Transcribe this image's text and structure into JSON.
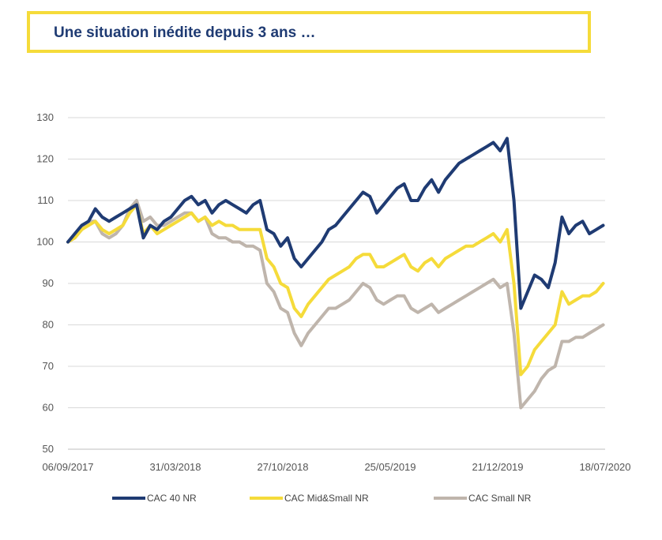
{
  "header": {
    "title": "Une situation inédite depuis 3 ans …"
  },
  "chart_data": {
    "type": "line",
    "title": "",
    "xlabel": "",
    "ylabel": "",
    "ylim": [
      50,
      130
    ],
    "y_ticks": [
      50,
      60,
      70,
      80,
      90,
      100,
      110,
      120,
      130
    ],
    "x_range": [
      "2017-09-06",
      "2020-09-06"
    ],
    "x_ticks": [
      "06/09/2017",
      "31/03/2018",
      "27/10/2018",
      "25/05/2019",
      "21/12/2019",
      "18/07/2020"
    ],
    "grid": true,
    "legend_position": "bottom",
    "series": [
      {
        "name": "CAC 40 NR",
        "color": "#1F3B73",
        "points": [
          [
            "2017-09-06",
            100
          ],
          [
            "2017-09-20",
            102
          ],
          [
            "2017-10-04",
            104
          ],
          [
            "2017-10-18",
            105
          ],
          [
            "2017-11-01",
            108
          ],
          [
            "2017-11-15",
            106
          ],
          [
            "2017-11-29",
            105
          ],
          [
            "2017-12-13",
            106
          ],
          [
            "2017-12-27",
            107
          ],
          [
            "2018-01-10",
            108
          ],
          [
            "2018-01-24",
            109
          ],
          [
            "2018-02-07",
            101
          ],
          [
            "2018-02-21",
            104
          ],
          [
            "2018-03-07",
            103
          ],
          [
            "2018-03-21",
            105
          ],
          [
            "2018-04-04",
            106
          ],
          [
            "2018-04-18",
            108
          ],
          [
            "2018-05-02",
            110
          ],
          [
            "2018-05-16",
            111
          ],
          [
            "2018-05-30",
            109
          ],
          [
            "2018-06-13",
            110
          ],
          [
            "2018-06-27",
            107
          ],
          [
            "2018-07-11",
            109
          ],
          [
            "2018-07-25",
            110
          ],
          [
            "2018-08-08",
            109
          ],
          [
            "2018-08-22",
            108
          ],
          [
            "2018-09-05",
            107
          ],
          [
            "2018-09-19",
            109
          ],
          [
            "2018-10-03",
            110
          ],
          [
            "2018-10-17",
            103
          ],
          [
            "2018-10-31",
            102
          ],
          [
            "2018-11-14",
            99
          ],
          [
            "2018-11-28",
            101
          ],
          [
            "2018-12-12",
            96
          ],
          [
            "2018-12-26",
            94
          ],
          [
            "2019-01-09",
            96
          ],
          [
            "2019-01-23",
            98
          ],
          [
            "2019-02-06",
            100
          ],
          [
            "2019-02-20",
            103
          ],
          [
            "2019-03-06",
            104
          ],
          [
            "2019-03-20",
            106
          ],
          [
            "2019-04-03",
            108
          ],
          [
            "2019-04-17",
            110
          ],
          [
            "2019-05-01",
            112
          ],
          [
            "2019-05-15",
            111
          ],
          [
            "2019-05-29",
            107
          ],
          [
            "2019-06-12",
            109
          ],
          [
            "2019-06-26",
            111
          ],
          [
            "2019-07-10",
            113
          ],
          [
            "2019-07-24",
            114
          ],
          [
            "2019-08-07",
            110
          ],
          [
            "2019-08-21",
            110
          ],
          [
            "2019-09-04",
            113
          ],
          [
            "2019-09-18",
            115
          ],
          [
            "2019-10-02",
            112
          ],
          [
            "2019-10-16",
            115
          ],
          [
            "2019-10-30",
            117
          ],
          [
            "2019-11-13",
            119
          ],
          [
            "2019-11-27",
            120
          ],
          [
            "2019-12-11",
            121
          ],
          [
            "2019-12-25",
            122
          ],
          [
            "2020-01-08",
            123
          ],
          [
            "2020-01-22",
            124
          ],
          [
            "2020-02-05",
            122
          ],
          [
            "2020-02-19",
            125
          ],
          [
            "2020-03-04",
            110
          ],
          [
            "2020-03-18",
            84
          ],
          [
            "2020-04-01",
            88
          ],
          [
            "2020-04-15",
            92
          ],
          [
            "2020-04-29",
            91
          ],
          [
            "2020-05-13",
            89
          ],
          [
            "2020-05-27",
            95
          ],
          [
            "2020-06-10",
            106
          ],
          [
            "2020-06-24",
            102
          ],
          [
            "2020-07-08",
            104
          ],
          [
            "2020-07-22",
            105
          ],
          [
            "2020-08-05",
            102
          ],
          [
            "2020-08-19",
            103
          ],
          [
            "2020-09-02",
            104
          ]
        ]
      },
      {
        "name": "CAC Mid&Small NR",
        "color": "#F5DB3A",
        "points": [
          [
            "2017-09-06",
            100
          ],
          [
            "2017-09-20",
            101
          ],
          [
            "2017-10-04",
            103
          ],
          [
            "2017-10-18",
            104
          ],
          [
            "2017-11-01",
            105
          ],
          [
            "2017-11-15",
            103
          ],
          [
            "2017-11-29",
            102
          ],
          [
            "2017-12-13",
            103
          ],
          [
            "2017-12-27",
            104
          ],
          [
            "2018-01-10",
            107
          ],
          [
            "2018-01-24",
            109
          ],
          [
            "2018-02-07",
            102
          ],
          [
            "2018-02-21",
            104
          ],
          [
            "2018-03-07",
            102
          ],
          [
            "2018-03-21",
            103
          ],
          [
            "2018-04-04",
            104
          ],
          [
            "2018-04-18",
            105
          ],
          [
            "2018-05-02",
            106
          ],
          [
            "2018-05-16",
            107
          ],
          [
            "2018-05-30",
            105
          ],
          [
            "2018-06-13",
            106
          ],
          [
            "2018-06-27",
            104
          ],
          [
            "2018-07-11",
            105
          ],
          [
            "2018-07-25",
            104
          ],
          [
            "2018-08-08",
            104
          ],
          [
            "2018-08-22",
            103
          ],
          [
            "2018-09-05",
            103
          ],
          [
            "2018-09-19",
            103
          ],
          [
            "2018-10-03",
            103
          ],
          [
            "2018-10-17",
            96
          ],
          [
            "2018-10-31",
            94
          ],
          [
            "2018-11-14",
            90
          ],
          [
            "2018-11-28",
            89
          ],
          [
            "2018-12-12",
            84
          ],
          [
            "2018-12-26",
            82
          ],
          [
            "2019-01-09",
            85
          ],
          [
            "2019-01-23",
            87
          ],
          [
            "2019-02-06",
            89
          ],
          [
            "2019-02-20",
            91
          ],
          [
            "2019-03-06",
            92
          ],
          [
            "2019-03-20",
            93
          ],
          [
            "2019-04-03",
            94
          ],
          [
            "2019-04-17",
            96
          ],
          [
            "2019-05-01",
            97
          ],
          [
            "2019-05-15",
            97
          ],
          [
            "2019-05-29",
            94
          ],
          [
            "2019-06-12",
            94
          ],
          [
            "2019-06-26",
            95
          ],
          [
            "2019-07-10",
            96
          ],
          [
            "2019-07-24",
            97
          ],
          [
            "2019-08-07",
            94
          ],
          [
            "2019-08-21",
            93
          ],
          [
            "2019-09-04",
            95
          ],
          [
            "2019-09-18",
            96
          ],
          [
            "2019-10-02",
            94
          ],
          [
            "2019-10-16",
            96
          ],
          [
            "2019-10-30",
            97
          ],
          [
            "2019-11-13",
            98
          ],
          [
            "2019-11-27",
            99
          ],
          [
            "2019-12-11",
            99
          ],
          [
            "2019-12-25",
            100
          ],
          [
            "2020-01-08",
            101
          ],
          [
            "2020-01-22",
            102
          ],
          [
            "2020-02-05",
            100
          ],
          [
            "2020-02-19",
            103
          ],
          [
            "2020-03-04",
            90
          ],
          [
            "2020-03-18",
            68
          ],
          [
            "2020-04-01",
            70
          ],
          [
            "2020-04-15",
            74
          ],
          [
            "2020-04-29",
            76
          ],
          [
            "2020-05-13",
            78
          ],
          [
            "2020-05-27",
            80
          ],
          [
            "2020-06-10",
            88
          ],
          [
            "2020-06-24",
            85
          ],
          [
            "2020-07-08",
            86
          ],
          [
            "2020-07-22",
            87
          ],
          [
            "2020-08-05",
            87
          ],
          [
            "2020-08-19",
            88
          ],
          [
            "2020-09-02",
            90
          ]
        ]
      },
      {
        "name": "CAC Small NR",
        "color": "#BFB5AC",
        "points": [
          [
            "2017-09-06",
            100
          ],
          [
            "2017-09-20",
            101
          ],
          [
            "2017-10-04",
            103
          ],
          [
            "2017-10-18",
            105
          ],
          [
            "2017-11-01",
            105
          ],
          [
            "2017-11-15",
            102
          ],
          [
            "2017-11-29",
            101
          ],
          [
            "2017-12-13",
            102
          ],
          [
            "2017-12-27",
            104
          ],
          [
            "2018-01-10",
            108
          ],
          [
            "2018-01-24",
            110
          ],
          [
            "2018-02-07",
            105
          ],
          [
            "2018-02-21",
            106
          ],
          [
            "2018-03-07",
            104
          ],
          [
            "2018-03-21",
            104
          ],
          [
            "2018-04-04",
            105
          ],
          [
            "2018-04-18",
            106
          ],
          [
            "2018-05-02",
            107
          ],
          [
            "2018-05-16",
            107
          ],
          [
            "2018-05-30",
            105
          ],
          [
            "2018-06-13",
            106
          ],
          [
            "2018-06-27",
            102
          ],
          [
            "2018-07-11",
            101
          ],
          [
            "2018-07-25",
            101
          ],
          [
            "2018-08-08",
            100
          ],
          [
            "2018-08-22",
            100
          ],
          [
            "2018-09-05",
            99
          ],
          [
            "2018-09-19",
            99
          ],
          [
            "2018-10-03",
            98
          ],
          [
            "2018-10-17",
            90
          ],
          [
            "2018-10-31",
            88
          ],
          [
            "2018-11-14",
            84
          ],
          [
            "2018-11-28",
            83
          ],
          [
            "2018-12-12",
            78
          ],
          [
            "2018-12-26",
            75
          ],
          [
            "2019-01-09",
            78
          ],
          [
            "2019-01-23",
            80
          ],
          [
            "2019-02-06",
            82
          ],
          [
            "2019-02-20",
            84
          ],
          [
            "2019-03-06",
            84
          ],
          [
            "2019-03-20",
            85
          ],
          [
            "2019-04-03",
            86
          ],
          [
            "2019-04-17",
            88
          ],
          [
            "2019-05-01",
            90
          ],
          [
            "2019-05-15",
            89
          ],
          [
            "2019-05-29",
            86
          ],
          [
            "2019-06-12",
            85
          ],
          [
            "2019-06-26",
            86
          ],
          [
            "2019-07-10",
            87
          ],
          [
            "2019-07-24",
            87
          ],
          [
            "2019-08-07",
            84
          ],
          [
            "2019-08-21",
            83
          ],
          [
            "2019-09-04",
            84
          ],
          [
            "2019-09-18",
            85
          ],
          [
            "2019-10-02",
            83
          ],
          [
            "2019-10-16",
            84
          ],
          [
            "2019-10-30",
            85
          ],
          [
            "2019-11-13",
            86
          ],
          [
            "2019-11-27",
            87
          ],
          [
            "2019-12-11",
            88
          ],
          [
            "2019-12-25",
            89
          ],
          [
            "2020-01-08",
            90
          ],
          [
            "2020-01-22",
            91
          ],
          [
            "2020-02-05",
            89
          ],
          [
            "2020-02-19",
            90
          ],
          [
            "2020-03-04",
            78
          ],
          [
            "2020-03-18",
            60
          ],
          [
            "2020-04-01",
            62
          ],
          [
            "2020-04-15",
            64
          ],
          [
            "2020-04-29",
            67
          ],
          [
            "2020-05-13",
            69
          ],
          [
            "2020-05-27",
            70
          ],
          [
            "2020-06-10",
            76
          ],
          [
            "2020-06-24",
            76
          ],
          [
            "2020-07-08",
            77
          ],
          [
            "2020-07-22",
            77
          ],
          [
            "2020-08-05",
            78
          ],
          [
            "2020-08-19",
            79
          ],
          [
            "2020-09-02",
            80
          ]
        ]
      }
    ]
  }
}
